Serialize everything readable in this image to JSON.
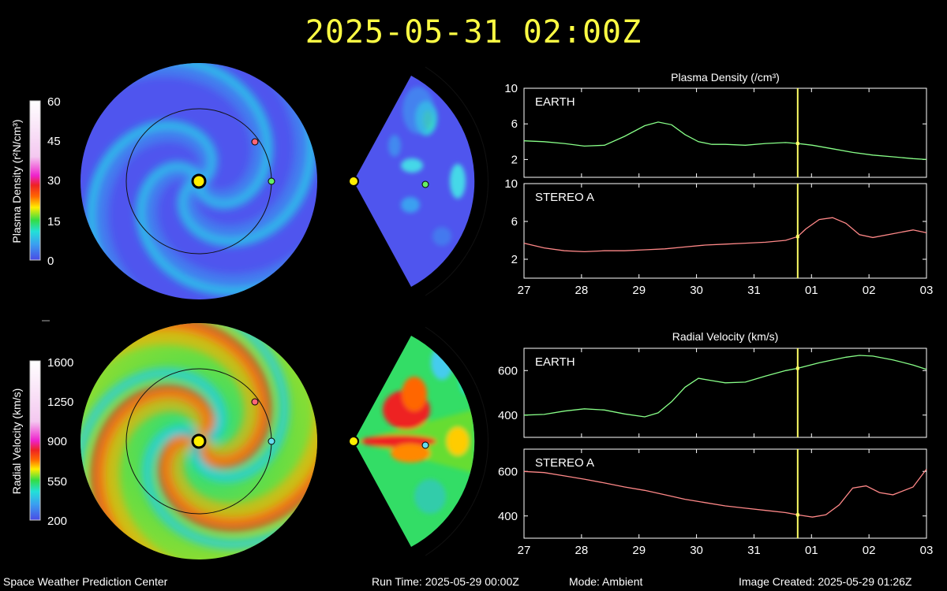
{
  "title": "2025-05-31 02:00Z",
  "footer": {
    "org": "Space Weather Prediction Center",
    "run_time": "Run Time: 2025-05-29 00:00Z",
    "mode": "Mode: Ambient",
    "image_created": "Image Created: 2025-05-29 01:26Z"
  },
  "colorbars": {
    "density": {
      "label": "Plasma Density (r²N/cm³)",
      "ticks": [
        "60",
        "45",
        "30",
        "15",
        "0"
      ]
    },
    "velocity": {
      "label": "Radial Velocity (km/s)",
      "ticks": [
        "1600",
        "1250",
        "900",
        "550",
        "200"
      ]
    }
  },
  "colors": {
    "title": "#ffff44",
    "earth": "#88ff88",
    "stereo_a": "#ff8888",
    "current_time_marker": "#ffff66"
  },
  "chart_data": [
    {
      "type": "line",
      "title": "Plasma Density (/cm³)",
      "x_tick_labels": [
        "27",
        "28",
        "29",
        "30",
        "31",
        "01",
        "02",
        "03"
      ],
      "current_time_x": 31.08,
      "panels": [
        {
          "name": "EARTH",
          "color": "#88ff88",
          "ylim": [
            0,
            10
          ],
          "y_ticks": [
            2,
            6,
            10
          ],
          "x": [
            27,
            27.3,
            27.6,
            27.9,
            28.2,
            28.5,
            28.8,
            29.0,
            29.2,
            29.4,
            29.6,
            29.8,
            30.0,
            30.3,
            30.6,
            30.9,
            31.08,
            31.3,
            31.6,
            31.9,
            32.2,
            32.5,
            32.8,
            33.0
          ],
          "values": [
            4.1,
            4.0,
            3.8,
            3.5,
            3.6,
            4.6,
            5.8,
            6.2,
            5.9,
            4.8,
            4.0,
            3.7,
            3.7,
            3.6,
            3.8,
            3.9,
            3.8,
            3.6,
            3.2,
            2.8,
            2.5,
            2.3,
            2.1,
            2.0
          ]
        },
        {
          "name": "STEREO A",
          "color": "#ff8888",
          "ylim": [
            0,
            10
          ],
          "y_ticks": [
            2,
            6,
            10
          ],
          "x": [
            27,
            27.3,
            27.6,
            27.9,
            28.2,
            28.5,
            28.8,
            29.1,
            29.4,
            29.7,
            30.0,
            30.3,
            30.6,
            30.9,
            31.08,
            31.2,
            31.4,
            31.6,
            31.8,
            32.0,
            32.2,
            32.5,
            32.8,
            33.0
          ],
          "values": [
            3.7,
            3.2,
            2.9,
            2.8,
            2.9,
            2.9,
            3.0,
            3.1,
            3.3,
            3.5,
            3.6,
            3.7,
            3.8,
            4.0,
            4.4,
            5.2,
            6.2,
            6.4,
            5.8,
            4.6,
            4.3,
            4.7,
            5.1,
            4.8
          ]
        }
      ]
    },
    {
      "type": "line",
      "title": "Radial Velocity (km/s)",
      "x_tick_labels": [
        "27",
        "28",
        "29",
        "30",
        "31",
        "01",
        "02",
        "03"
      ],
      "current_time_x": 31.08,
      "panels": [
        {
          "name": "EARTH",
          "color": "#88ff88",
          "ylim": [
            300,
            700
          ],
          "y_ticks": [
            400,
            600
          ],
          "x": [
            27,
            27.3,
            27.6,
            27.9,
            28.2,
            28.5,
            28.8,
            29.0,
            29.2,
            29.4,
            29.6,
            29.8,
            30.0,
            30.3,
            30.6,
            30.9,
            31.08,
            31.4,
            31.8,
            32.0,
            32.2,
            32.5,
            32.8,
            33.0
          ],
          "values": [
            400,
            403,
            418,
            428,
            423,
            405,
            392,
            410,
            460,
            525,
            565,
            555,
            545,
            548,
            575,
            600,
            610,
            635,
            660,
            668,
            665,
            648,
            625,
            605
          ]
        },
        {
          "name": "STEREO A",
          "color": "#ff8888",
          "ylim": [
            300,
            700
          ],
          "y_ticks": [
            400,
            600
          ],
          "x": [
            27,
            27.3,
            27.6,
            27.9,
            28.2,
            28.5,
            28.8,
            29.1,
            29.4,
            29.7,
            30.0,
            30.3,
            30.6,
            30.9,
            31.08,
            31.3,
            31.5,
            31.7,
            31.9,
            32.1,
            32.3,
            32.5,
            32.8,
            33.0
          ],
          "values": [
            600,
            595,
            580,
            565,
            548,
            530,
            515,
            495,
            475,
            460,
            445,
            435,
            425,
            415,
            405,
            395,
            405,
            450,
            525,
            535,
            505,
            495,
            530,
            610
          ]
        }
      ]
    }
  ]
}
